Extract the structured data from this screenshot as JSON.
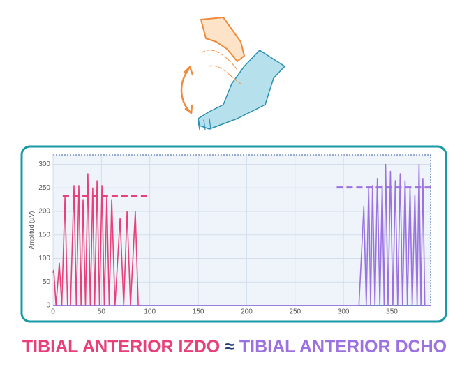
{
  "chart_data": {
    "type": "line",
    "y_label": "Amplitud (µV)",
    "xlim": [
      0,
      390
    ],
    "ylim": [
      0,
      320
    ],
    "xticks": [
      0,
      50,
      100,
      150,
      200,
      250,
      300,
      350
    ],
    "yticks": [
      0,
      50,
      100,
      150,
      200,
      250,
      300
    ],
    "grid": true,
    "comparison_symbol": "≈",
    "series": [
      {
        "name": "TIBIAL ANTERIOR IZDO",
        "color": "#e8407a",
        "x": [
          0,
          0.7,
          3,
          6.5,
          9,
          12.3,
          15,
          18,
          21.6,
          24,
          26.7,
          29,
          31,
          33.5,
          36,
          38.5,
          41,
          43,
          45.5,
          48,
          50.5,
          53,
          55.5,
          58,
          60.6,
          64,
          69.3,
          73,
          76.5,
          80,
          85,
          88,
          92
        ],
        "values": [
          70,
          75,
          0,
          90,
          0,
          230,
          0,
          0,
          255,
          0,
          255,
          0,
          225,
          0,
          280,
          0,
          250,
          0,
          265,
          0,
          255,
          0,
          230,
          0,
          225,
          0,
          185,
          0,
          200,
          0,
          200,
          0,
          0
        ],
        "reference": {
          "value": 232,
          "x": [
            10,
            99
          ]
        }
      },
      {
        "name": "TIBIAL ANTERIOR DCHO",
        "color": "#9b72e0",
        "x": [
          0,
          316,
          321,
          323.5,
          326,
          328,
          330,
          332.5,
          335,
          337.5,
          340,
          342,
          343.5,
          346,
          348.5,
          351,
          353.5,
          356,
          358.6,
          361,
          363.6,
          366,
          368.7,
          371,
          373.7,
          376,
          378,
          380,
          382,
          384,
          390
        ],
        "values": [
          0,
          0,
          210,
          0,
          250,
          0,
          255,
          0,
          270,
          0,
          255,
          0,
          300,
          0,
          285,
          0,
          265,
          0,
          280,
          0,
          265,
          0,
          250,
          0,
          235,
          0,
          300,
          0,
          270,
          0,
          0
        ],
        "reference": {
          "value": 251,
          "x": [
            293,
            390
          ]
        }
      }
    ]
  }
}
